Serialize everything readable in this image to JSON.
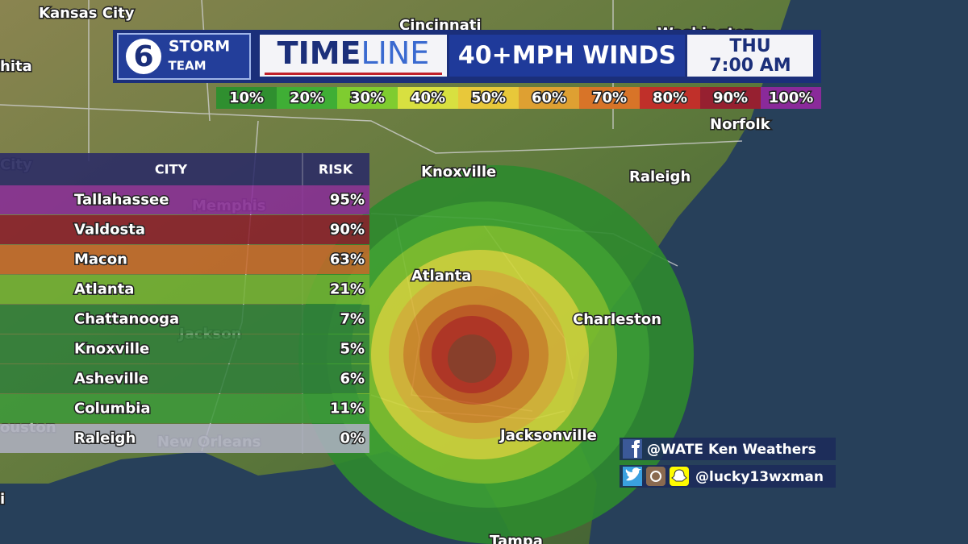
{
  "header": {
    "logo_number": "6",
    "logo_line1": "STORM",
    "logo_line2": "TEAM",
    "title_bold": "TIME",
    "title_light": "LINE",
    "subtitle": "40+MPH WINDS",
    "day": "THU",
    "time": "7:00 AM"
  },
  "legend": [
    {
      "label": "10%",
      "color": "#2f8f2f"
    },
    {
      "label": "20%",
      "color": "#3fae35"
    },
    {
      "label": "30%",
      "color": "#7fcc30"
    },
    {
      "label": "40%",
      "color": "#d8e040"
    },
    {
      "label": "50%",
      "color": "#e8c83a"
    },
    {
      "label": "60%",
      "color": "#dea032"
    },
    {
      "label": "70%",
      "color": "#d87428"
    },
    {
      "label": "80%",
      "color": "#c0302a"
    },
    {
      "label": "90%",
      "color": "#962030"
    },
    {
      "label": "100%",
      "color": "#8a2a9a"
    }
  ],
  "table": {
    "columns": [
      "CITY",
      "RISK"
    ],
    "rows": [
      [
        "Tallahassee",
        "95%"
      ],
      [
        "Valdosta",
        "90%"
      ],
      [
        "Macon",
        "63%"
      ],
      [
        "Atlanta",
        "21%"
      ],
      [
        "Chattanooga",
        "7%"
      ],
      [
        "Knoxville",
        "5%"
      ],
      [
        "Asheville",
        "6%"
      ],
      [
        "Columbia",
        "11%"
      ],
      [
        "Raleigh",
        "0%"
      ]
    ],
    "row_colors": [
      "#8a2a9a",
      "#8c1c2c",
      "#c8682a",
      "#72b232",
      "#2f7f3a",
      "#2f7f3a",
      "#2f7f3a",
      "#3c9a3a",
      "#b0b2c4"
    ]
  },
  "map_labels": [
    "Kansas City",
    "Cincinnati",
    "Washington",
    "hita",
    "Norfolk",
    "City",
    "Knoxville",
    "Raleigh",
    "Memphis",
    "Atlanta",
    "Charleston",
    "Jackson",
    "Jacksonville",
    "ouston",
    "New Orleans",
    "i",
    "Tampa"
  ],
  "social": [
    "@WATE Ken Weathers",
    "@lucky13wxman"
  ]
}
